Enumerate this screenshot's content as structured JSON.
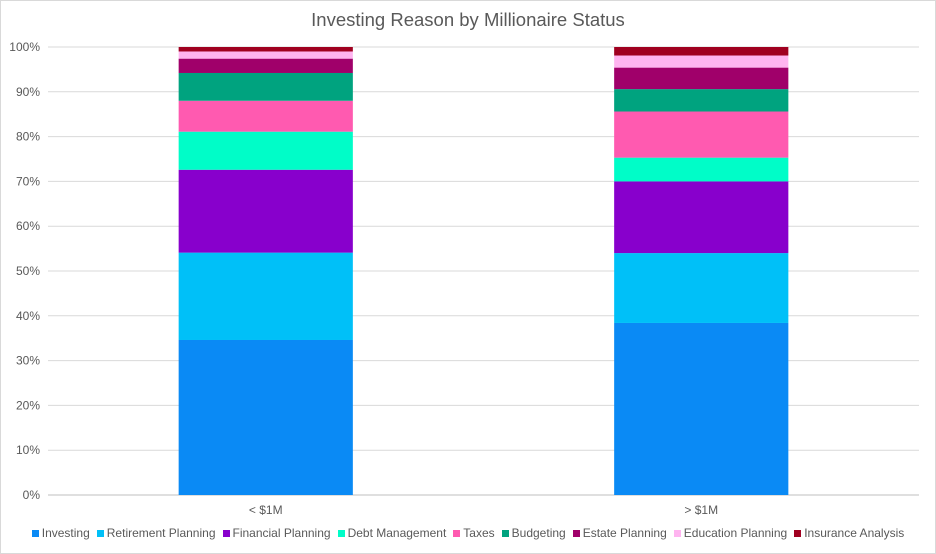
{
  "chart_data": {
    "type": "bar",
    "stacked": true,
    "percent_stacked": true,
    "title": "Investing Reason by Millionaire Status",
    "categories": [
      "< $1M",
      "> $1M"
    ],
    "y_ticks": [
      "0%",
      "10%",
      "20%",
      "30%",
      "40%",
      "50%",
      "60%",
      "70%",
      "80%",
      "90%",
      "100%"
    ],
    "ylim": [
      0,
      100
    ],
    "grid": true,
    "legend_position": "bottom",
    "series": [
      {
        "name": "Investing",
        "color": "#0a8af5",
        "values": [
          34.6,
          38.4
        ]
      },
      {
        "name": "Retirement Planning",
        "color": "#00c0f8",
        "values": [
          19.5,
          15.6
        ]
      },
      {
        "name": "Financial Planning",
        "color": "#8800cc",
        "values": [
          18.5,
          16.0
        ]
      },
      {
        "name": "Debt Management",
        "color": "#00fdc8",
        "values": [
          8.5,
          5.3
        ]
      },
      {
        "name": "Taxes",
        "color": "#ff5ab0",
        "values": [
          6.9,
          10.3
        ]
      },
      {
        "name": "Budgeting",
        "color": "#00a37f",
        "values": [
          6.2,
          5.0
        ]
      },
      {
        "name": "Estate Planning",
        "color": "#a0006a",
        "values": [
          3.2,
          4.8
        ]
      },
      {
        "name": "Education Planning",
        "color": "#ffb4f0",
        "values": [
          1.6,
          2.7
        ]
      },
      {
        "name": "Insurance Analysis",
        "color": "#a00020",
        "values": [
          1.0,
          1.9
        ]
      }
    ]
  }
}
